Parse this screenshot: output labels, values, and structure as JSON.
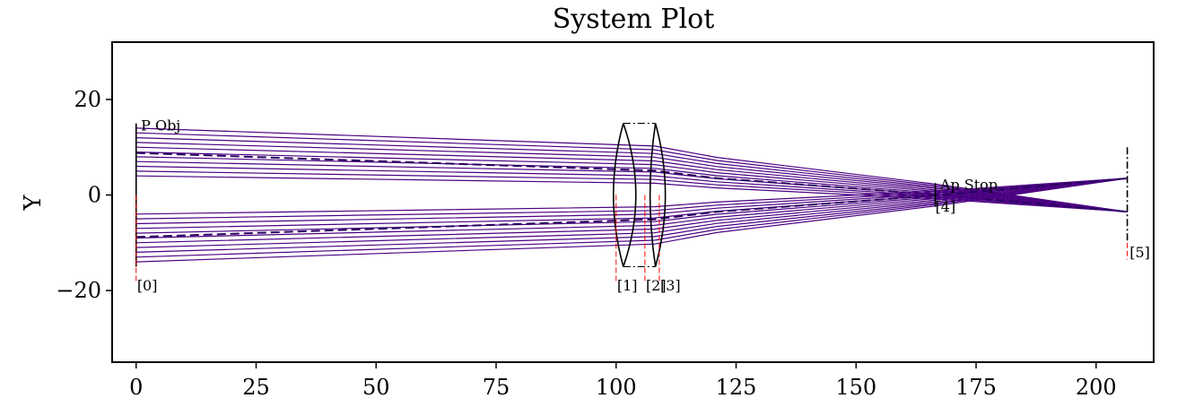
{
  "chart_data": {
    "type": "line",
    "title": "System Plot",
    "xlabel": "",
    "ylabel": "Y",
    "xlim": [
      -5,
      212
    ],
    "ylim": [
      -35,
      32
    ],
    "xticks": [
      0,
      25,
      50,
      75,
      100,
      125,
      150,
      175,
      200
    ],
    "yticks": [
      -20,
      0,
      20
    ],
    "ytick_labels": [
      "−20",
      "0",
      "20"
    ],
    "grid": false,
    "ray_color": "#4b0082",
    "surface_color": "#000000",
    "axis_line_color": "#ff0000",
    "surfaces": [
      {
        "label": "[0]",
        "x": 0,
        "half_height": 15
      },
      {
        "label": "[1]",
        "x": 100,
        "half_height": 15
      },
      {
        "label": "[2]",
        "x": 106,
        "half_height": 15
      },
      {
        "label": "[3]",
        "x": 109,
        "half_height": 15
      },
      {
        "label": "[4]",
        "x": 166.5,
        "half_height": 2.5
      },
      {
        "label": "[5]",
        "x": 206.5,
        "half_height": 10
      }
    ],
    "annotations": [
      {
        "text": "P Obj",
        "x": 1,
        "y": 13.5
      },
      {
        "text": "Ap Stop",
        "x": 167.5,
        "y": 1.1
      }
    ],
    "ray_bundles": [
      {
        "name": "upper",
        "x_points": [
          0,
          108,
          121,
          166.5,
          206.5
        ],
        "object_y": [
          14,
          4
        ],
        "stop_y": [
          2.3,
          -0.8
        ],
        "image_y": -3.5,
        "chief_y": 8.8,
        "count": 11
      },
      {
        "name": "lower",
        "x_points": [
          0,
          108,
          121,
          166.5,
          206.5
        ],
        "object_y": [
          -4,
          -14
        ],
        "stop_y": [
          0.8,
          -2.3
        ],
        "image_y": 3.5,
        "chief_y": -8.8,
        "count": 11
      }
    ]
  }
}
